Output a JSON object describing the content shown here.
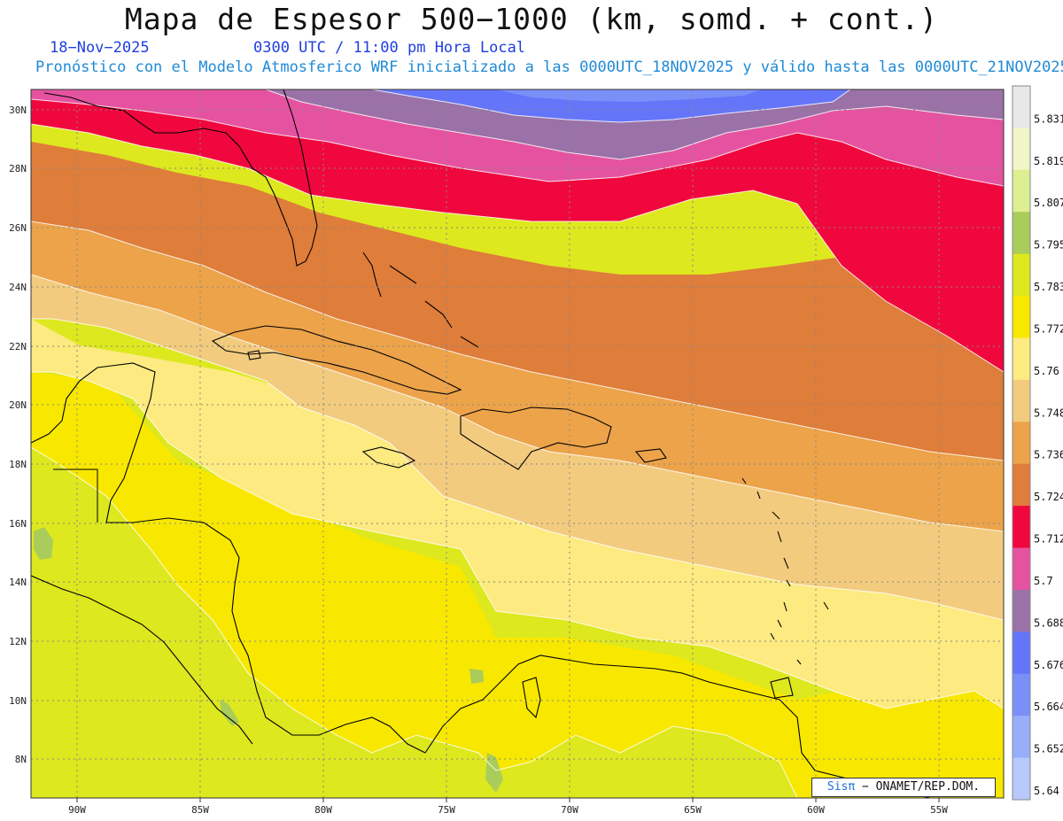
{
  "header": {
    "title": "Mapa de Espesor 500−1000 (km, somd. + cont.)",
    "date": "18−Nov−2025",
    "time": "0300 UTC / 11:00 pm Hora Local",
    "model_line": "Pronóstico con el Modelo Atmosferico WRF inicializado a las 0000UTC_18NOV2025 y válido hasta las  0000UTC_21NOV2025"
  },
  "axes": {
    "lon_labels": [
      "90W",
      "85W",
      "80W",
      "75W",
      "70W",
      "65W",
      "60W",
      "55W"
    ],
    "lat_labels": [
      "30N",
      "28N",
      "26N",
      "24N",
      "22N",
      "20N",
      "18N",
      "16N",
      "14N",
      "12N",
      "10N",
      "8N"
    ]
  },
  "colorbar": {
    "levels": [
      "5.831",
      "5.819",
      "5.807",
      "5.795",
      "5.783",
      "5.772",
      "5.76",
      "5.748",
      "5.736",
      "5.724",
      "5.712",
      "5.7",
      "5.688",
      "5.676",
      "5.664",
      "5.652",
      "5.64"
    ],
    "colors_top_to_bottom": [
      "#e8e8e8",
      "#f2f5c8",
      "#dcef92",
      "#a9cc5a",
      "#dde81e",
      "#f8e800",
      "#fdea80",
      "#f2cb7e",
      "#eca34a",
      "#df7d3a",
      "#f0073e",
      "#e553a0",
      "#9a72a7",
      "#6575fa",
      "#7b8ff8",
      "#97aefa",
      "#b8c8fa"
    ]
  },
  "credit": {
    "brand": "Sisπ",
    "text": "− ONAMET/REP.DOM."
  }
}
